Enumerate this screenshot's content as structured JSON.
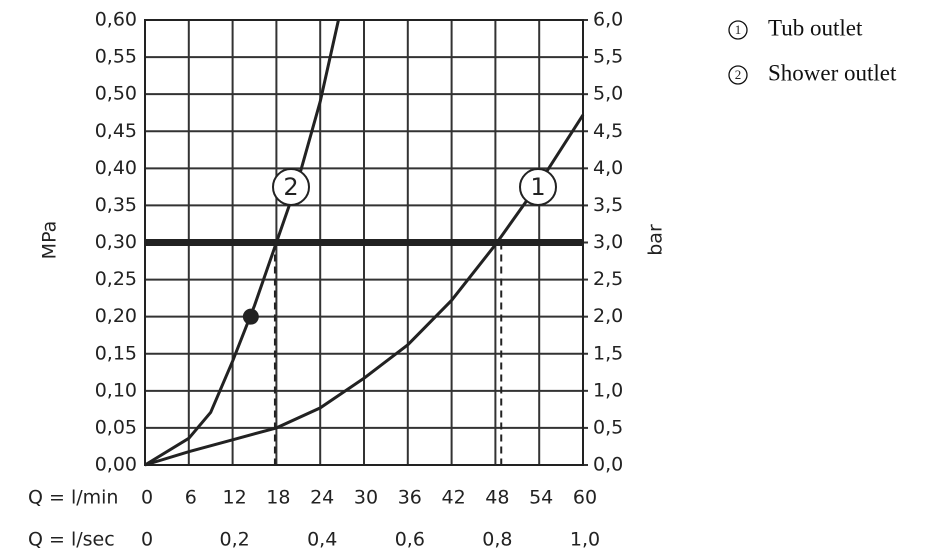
{
  "chart_data": {
    "type": "line",
    "xlabel": "Q = l/min",
    "x2label": "Q = l/sec",
    "ylabel": "MPa",
    "y2label": "bar",
    "xlim": [
      0,
      60
    ],
    "xticks": [
      0,
      6,
      12,
      18,
      24,
      30,
      36,
      42,
      48,
      54,
      60
    ],
    "x2lim": [
      0,
      1
    ],
    "x2ticks": [
      0,
      {
        "value": 0.2,
        "label": "0,2"
      },
      {
        "value": 0.4,
        "label": "0,4"
      },
      {
        "value": 0.6,
        "label": "0,6"
      },
      {
        "value": 0.8,
        "label": "0,8"
      },
      {
        "value": 1,
        "label": "1,0"
      }
    ],
    "ylim": [
      0,
      0.6
    ],
    "yticks": [
      {
        "value": 0,
        "label": "0,00"
      },
      {
        "value": 0.05,
        "label": "0,05"
      },
      {
        "value": 0.1,
        "label": "0,10"
      },
      {
        "value": 0.15,
        "label": "0,15"
      },
      {
        "value": 0.2,
        "label": "0,20"
      },
      {
        "value": 0.25,
        "label": "0,25"
      },
      {
        "value": 0.3,
        "label": "0,30"
      },
      {
        "value": 0.35,
        "label": "0,35"
      },
      {
        "value": 0.4,
        "label": "0,40"
      },
      {
        "value": 0.45,
        "label": "0,45"
      },
      {
        "value": 0.5,
        "label": "0,50"
      },
      {
        "value": 0.55,
        "label": "0,55"
      },
      {
        "value": 0.6,
        "label": "0,60"
      }
    ],
    "y2lim": [
      0,
      6
    ],
    "y2ticks": [
      {
        "value": 0,
        "label": "0,0"
      },
      {
        "value": 0.5,
        "label": "0,5"
      },
      {
        "value": 1,
        "label": "1,0"
      },
      {
        "value": 1.5,
        "label": "1,5"
      },
      {
        "value": 2,
        "label": "2,0"
      },
      {
        "value": 2.5,
        "label": "2,5"
      },
      {
        "value": 3,
        "label": "3,0"
      },
      {
        "value": 3.5,
        "label": "3,5"
      },
      {
        "value": 4,
        "label": "4,0"
      },
      {
        "value": 4.5,
        "label": "4,5"
      },
      {
        "value": 5,
        "label": "5,0"
      },
      {
        "value": 5.5,
        "label": "5,5"
      },
      {
        "value": 6,
        "label": "6,0"
      }
    ],
    "grid": true,
    "reference_line": 0.3,
    "operating_points": [
      {
        "x": 17.8,
        "y": 0.3
      },
      {
        "x": 48.8,
        "y": 0.3
      }
    ],
    "marked_point": {
      "x": 14.5,
      "y": 0.2
    },
    "series": [
      {
        "name": "Tub outlet",
        "label": "1",
        "color": "#222222",
        "x": [
          0,
          6,
          12,
          18,
          24,
          30,
          36,
          42,
          48,
          54,
          60
        ],
        "values": [
          0,
          0.018,
          0.034,
          0.05,
          0.077,
          0.117,
          0.162,
          0.222,
          0.297,
          0.38,
          0.472
        ]
      },
      {
        "name": "Shower outlet",
        "label": "2",
        "color": "#222222",
        "x": [
          0,
          6,
          9,
          12,
          15,
          18,
          21,
          24,
          26.5
        ],
        "values": [
          0,
          0.036,
          0.071,
          0.14,
          0.215,
          0.3,
          0.385,
          0.49,
          0.6
        ]
      }
    ]
  }
}
